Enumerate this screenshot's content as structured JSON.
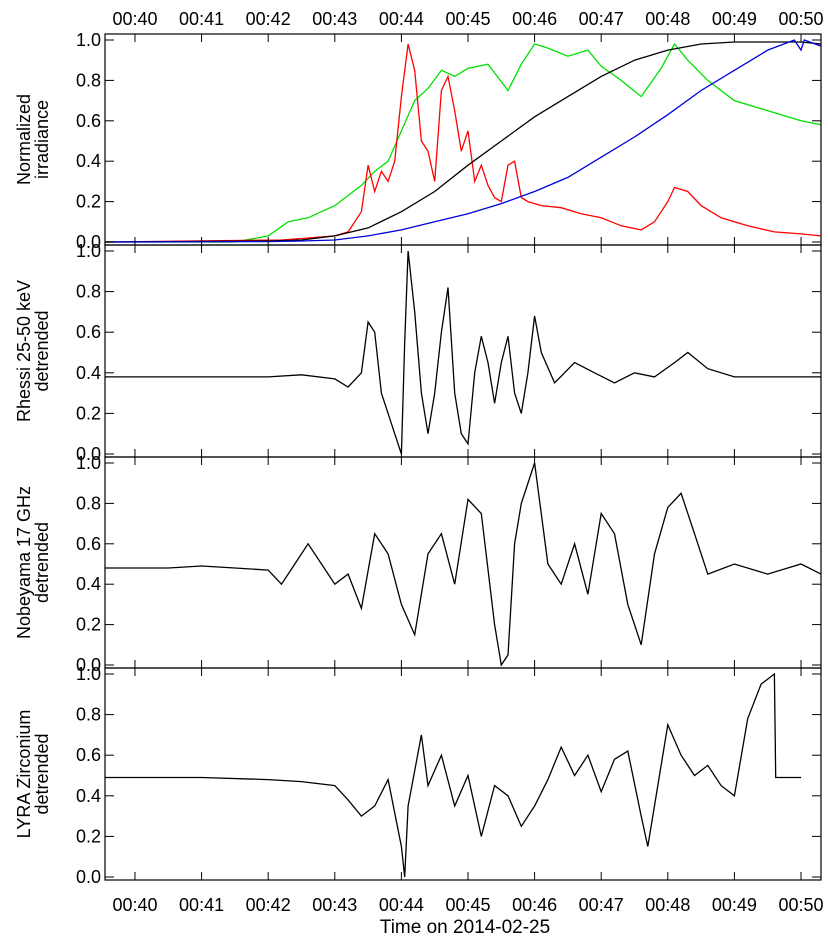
{
  "figure": {
    "date_label": "Time on 2014-02-25",
    "time_ticks": [
      "00:40",
      "00:41",
      "00:42",
      "00:43",
      "00:44",
      "00:45",
      "00:46",
      "00:47",
      "00:48",
      "00:49",
      "00:50"
    ],
    "y_ticks": [
      "0.0",
      "0.2",
      "0.4",
      "0.6",
      "0.8",
      "1.0"
    ]
  },
  "chart_data": [
    {
      "type": "line",
      "panel": 1,
      "ylabel": [
        "Normalized",
        "irradiance"
      ],
      "xlim": [
        39.55,
        50.3
      ],
      "ylim": [
        0,
        1
      ],
      "time_axis_top": true,
      "series": [
        {
          "color": "#00e000",
          "x": [
            39.55,
            41.5,
            42.0,
            42.3,
            42.6,
            43.0,
            43.4,
            43.6,
            43.8,
            44.0,
            44.2,
            44.4,
            44.6,
            44.8,
            45.0,
            45.3,
            45.6,
            45.8,
            46.0,
            46.2,
            46.5,
            46.8,
            47.0,
            47.3,
            47.6,
            47.9,
            48.1,
            48.3,
            48.6,
            49.0,
            49.5,
            50.0,
            50.3
          ],
          "y": [
            0,
            0,
            0.03,
            0.1,
            0.12,
            0.18,
            0.28,
            0.35,
            0.4,
            0.55,
            0.7,
            0.76,
            0.85,
            0.82,
            0.86,
            0.88,
            0.75,
            0.88,
            0.98,
            0.96,
            0.92,
            0.95,
            0.87,
            0.8,
            0.72,
            0.86,
            0.98,
            0.9,
            0.8,
            0.7,
            0.65,
            0.6,
            0.58
          ]
        },
        {
          "color": "#ff0000",
          "x": [
            39.55,
            42.2,
            42.6,
            43.0,
            43.2,
            43.4,
            43.5,
            43.6,
            43.7,
            43.8,
            43.9,
            44.0,
            44.1,
            44.2,
            44.3,
            44.4,
            44.5,
            44.6,
            44.7,
            44.8,
            44.9,
            45.0,
            45.1,
            45.2,
            45.3,
            45.4,
            45.5,
            45.6,
            45.7,
            45.8,
            45.9,
            46.1,
            46.4,
            46.7,
            47.0,
            47.3,
            47.6,
            47.8,
            48.0,
            48.1,
            48.3,
            48.5,
            48.8,
            49.2,
            49.6,
            50.0,
            50.3
          ],
          "y": [
            0,
            0.01,
            0.02,
            0.03,
            0.05,
            0.15,
            0.38,
            0.25,
            0.35,
            0.3,
            0.4,
            0.72,
            0.98,
            0.85,
            0.5,
            0.45,
            0.3,
            0.75,
            0.82,
            0.65,
            0.45,
            0.55,
            0.3,
            0.38,
            0.28,
            0.22,
            0.2,
            0.38,
            0.4,
            0.22,
            0.2,
            0.18,
            0.17,
            0.14,
            0.12,
            0.08,
            0.06,
            0.1,
            0.2,
            0.27,
            0.25,
            0.18,
            0.12,
            0.08,
            0.05,
            0.04,
            0.03
          ]
        },
        {
          "color": "#000000",
          "x": [
            39.55,
            42.0,
            42.5,
            43.0,
            43.5,
            44.0,
            44.5,
            45.0,
            45.5,
            46.0,
            46.5,
            47.0,
            47.5,
            48.0,
            48.5,
            49.0,
            49.5,
            50.0,
            50.3
          ],
          "y": [
            0,
            0.005,
            0.01,
            0.03,
            0.07,
            0.15,
            0.25,
            0.38,
            0.5,
            0.62,
            0.72,
            0.82,
            0.9,
            0.95,
            0.98,
            0.99,
            0.99,
            0.99,
            0.98
          ]
        },
        {
          "color": "#0000dd",
          "x": [
            39.55,
            42.0,
            42.5,
            43.0,
            43.5,
            44.0,
            44.5,
            45.0,
            45.5,
            46.0,
            46.5,
            47.0,
            47.5,
            48.0,
            48.5,
            49.0,
            49.5,
            49.9,
            50.0,
            50.05,
            50.3
          ],
          "y": [
            0,
            0.002,
            0.005,
            0.01,
            0.03,
            0.06,
            0.1,
            0.14,
            0.19,
            0.25,
            0.32,
            0.42,
            0.52,
            0.63,
            0.75,
            0.85,
            0.95,
            1.0,
            0.95,
            1.0,
            0.97
          ]
        }
      ]
    },
    {
      "type": "line",
      "panel": 2,
      "ylabel": [
        "Rhessi 25-50 keV",
        "detrended"
      ],
      "xlim": [
        39.55,
        50.3
      ],
      "ylim": [
        0,
        1
      ],
      "series": [
        {
          "color": "#000000",
          "x": [
            39.55,
            42.0,
            42.5,
            43.0,
            43.2,
            43.4,
            43.5,
            43.6,
            43.7,
            43.8,
            43.9,
            44.0,
            44.05,
            44.1,
            44.2,
            44.3,
            44.4,
            44.5,
            44.6,
            44.7,
            44.8,
            44.9,
            45.0,
            45.1,
            45.2,
            45.3,
            45.4,
            45.5,
            45.6,
            45.7,
            45.8,
            45.9,
            46.0,
            46.1,
            46.3,
            46.6,
            46.9,
            47.2,
            47.5,
            47.8,
            48.1,
            48.3,
            48.6,
            49.0,
            49.5,
            50.0,
            50.3
          ],
          "y": [
            0.38,
            0.38,
            0.39,
            0.37,
            0.33,
            0.4,
            0.65,
            0.6,
            0.3,
            0.2,
            0.1,
            0.0,
            0.55,
            1.0,
            0.7,
            0.3,
            0.1,
            0.3,
            0.6,
            0.82,
            0.3,
            0.1,
            0.05,
            0.4,
            0.58,
            0.45,
            0.25,
            0.45,
            0.58,
            0.3,
            0.2,
            0.4,
            0.68,
            0.5,
            0.35,
            0.45,
            0.4,
            0.35,
            0.4,
            0.38,
            0.45,
            0.5,
            0.42,
            0.38,
            0.38,
            0.38,
            0.38
          ]
        }
      ]
    },
    {
      "type": "line",
      "panel": 3,
      "ylabel": [
        "Nobeyama 17 GHz",
        "detrended"
      ],
      "xlim": [
        39.55,
        50.3
      ],
      "ylim": [
        0,
        1
      ],
      "series": [
        {
          "color": "#000000",
          "x": [
            39.55,
            40.5,
            41.0,
            41.5,
            42.0,
            42.2,
            42.4,
            42.6,
            42.8,
            43.0,
            43.2,
            43.4,
            43.6,
            43.8,
            44.0,
            44.2,
            44.4,
            44.6,
            44.8,
            45.0,
            45.2,
            45.4,
            45.5,
            45.6,
            45.7,
            45.8,
            46.0,
            46.2,
            46.4,
            46.6,
            46.8,
            47.0,
            47.2,
            47.4,
            47.6,
            47.8,
            48.0,
            48.2,
            48.4,
            48.6,
            49.0,
            49.5,
            50.0,
            50.3
          ],
          "y": [
            0.48,
            0.48,
            0.49,
            0.48,
            0.47,
            0.4,
            0.5,
            0.6,
            0.5,
            0.4,
            0.45,
            0.28,
            0.65,
            0.55,
            0.3,
            0.15,
            0.55,
            0.65,
            0.4,
            0.82,
            0.75,
            0.2,
            0.0,
            0.05,
            0.6,
            0.8,
            1.0,
            0.5,
            0.4,
            0.6,
            0.35,
            0.75,
            0.65,
            0.3,
            0.1,
            0.55,
            0.78,
            0.85,
            0.65,
            0.45,
            0.5,
            0.45,
            0.5,
            0.45
          ]
        }
      ]
    },
    {
      "type": "line",
      "panel": 4,
      "ylabel": [
        "LYRA Zirconium",
        "detrended"
      ],
      "xlim": [
        39.55,
        50.3
      ],
      "ylim": [
        0,
        1
      ],
      "series": [
        {
          "color": "#000000",
          "x": [
            39.55,
            41.0,
            42.0,
            42.5,
            43.0,
            43.2,
            43.4,
            43.6,
            43.8,
            44.0,
            44.05,
            44.1,
            44.3,
            44.4,
            44.6,
            44.8,
            45.0,
            45.2,
            45.4,
            45.6,
            45.8,
            46.0,
            46.2,
            46.4,
            46.6,
            46.8,
            47.0,
            47.2,
            47.4,
            47.6,
            47.7,
            48.0,
            48.2,
            48.4,
            48.6,
            48.8,
            49.0,
            49.2,
            49.4,
            49.6,
            49.62,
            49.7,
            50.0
          ],
          "y": [
            0.49,
            0.49,
            0.48,
            0.47,
            0.45,
            0.38,
            0.3,
            0.35,
            0.48,
            0.15,
            0.0,
            0.35,
            0.7,
            0.45,
            0.6,
            0.35,
            0.5,
            0.2,
            0.45,
            0.4,
            0.25,
            0.35,
            0.48,
            0.64,
            0.5,
            0.6,
            0.42,
            0.58,
            0.62,
            0.3,
            0.15,
            0.75,
            0.6,
            0.5,
            0.55,
            0.45,
            0.4,
            0.78,
            0.95,
            1.0,
            0.49,
            0.49,
            0.49
          ]
        }
      ]
    }
  ]
}
